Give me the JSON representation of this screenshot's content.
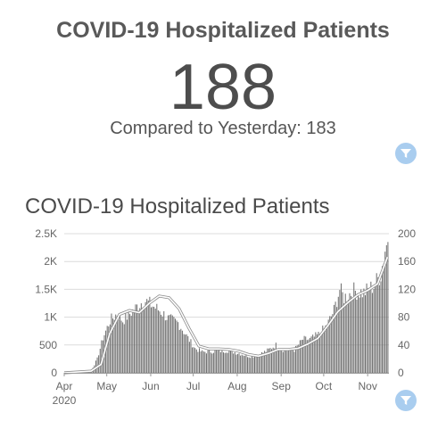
{
  "kpi": {
    "title": "COVID-19 Hospitalized Patients",
    "value": "188",
    "compare": "Compared to Yesterday: 183"
  },
  "icons": {
    "filter": "filter-funnel-icon"
  },
  "colors": {
    "bars": "#6b6b6b",
    "line": "#ffffff",
    "line_outline": "#8a8a8a",
    "filter": "#a9cdef"
  },
  "chart_data": {
    "type": "bar",
    "title": "COVID-19 Hospitalized Patients",
    "xlabel": "",
    "ylabel": "",
    "ylim": [
      0,
      2500
    ],
    "y2lim": [
      0,
      200
    ],
    "grid": true,
    "x_tick_labels": [
      "Apr",
      "May",
      "Jun",
      "Jul",
      "Aug",
      "Sep",
      "Oct",
      "Nov"
    ],
    "x_year_label": "2020",
    "y_tick_labels": [
      "0",
      "500",
      "1K",
      "1.5K",
      "2K",
      "2.5K"
    ],
    "y2_tick_labels": [
      "0",
      "40",
      "80",
      "120",
      "160",
      "200"
    ],
    "series": [
      {
        "type": "bar",
        "axis": "right",
        "start": "2020-04-01",
        "keypoints": [
          [
            "2020-04-01",
            0
          ],
          [
            "2020-04-15",
            1
          ],
          [
            "2020-04-20",
            4
          ],
          [
            "2020-04-24",
            20
          ],
          [
            "2020-04-28",
            50
          ],
          [
            "2020-05-03",
            75
          ],
          [
            "2020-05-08",
            85
          ],
          [
            "2020-05-12",
            75
          ],
          [
            "2020-05-17",
            85
          ],
          [
            "2020-05-22",
            95
          ],
          [
            "2020-05-27",
            105
          ],
          [
            "2020-06-03",
            95
          ],
          [
            "2020-06-08",
            88
          ],
          [
            "2020-06-13",
            78
          ],
          [
            "2020-06-20",
            72
          ],
          [
            "2020-06-27",
            50
          ],
          [
            "2020-07-02",
            35
          ],
          [
            "2020-07-07",
            30
          ],
          [
            "2020-07-15",
            31
          ],
          [
            "2020-07-25",
            32
          ],
          [
            "2020-08-02",
            28
          ],
          [
            "2020-08-09",
            24
          ],
          [
            "2020-08-15",
            25
          ],
          [
            "2020-08-22",
            32
          ],
          [
            "2020-08-28",
            40
          ],
          [
            "2020-09-03",
            32
          ],
          [
            "2020-09-10",
            33
          ],
          [
            "2020-09-16",
            48
          ],
          [
            "2020-09-21",
            48
          ],
          [
            "2020-09-27",
            55
          ],
          [
            "2020-10-03",
            68
          ],
          [
            "2020-10-08",
            90
          ],
          [
            "2020-10-12",
            120
          ],
          [
            "2020-10-15",
            108
          ],
          [
            "2020-10-22",
            118
          ],
          [
            "2020-10-29",
            115
          ],
          [
            "2020-11-05",
            125
          ],
          [
            "2020-11-10",
            142
          ],
          [
            "2020-11-13",
            178
          ],
          [
            "2020-11-15",
            188
          ]
        ]
      },
      {
        "type": "line",
        "axis": "left",
        "points": [
          [
            "2020-04-01",
            0
          ],
          [
            "2020-04-20",
            30
          ],
          [
            "2020-04-27",
            150
          ],
          [
            "2020-05-03",
            700
          ],
          [
            "2020-05-10",
            1050
          ],
          [
            "2020-05-17",
            1120
          ],
          [
            "2020-05-24",
            1080
          ],
          [
            "2020-05-31",
            1250
          ],
          [
            "2020-06-07",
            1380
          ],
          [
            "2020-06-14",
            1350
          ],
          [
            "2020-06-21",
            1150
          ],
          [
            "2020-06-28",
            800
          ],
          [
            "2020-07-05",
            480
          ],
          [
            "2020-07-12",
            430
          ],
          [
            "2020-07-19",
            430
          ],
          [
            "2020-07-26",
            420
          ],
          [
            "2020-08-02",
            390
          ],
          [
            "2020-08-09",
            330
          ],
          [
            "2020-08-16",
            300
          ],
          [
            "2020-08-23",
            350
          ],
          [
            "2020-08-30",
            420
          ],
          [
            "2020-09-06",
            420
          ],
          [
            "2020-09-13",
            440
          ],
          [
            "2020-09-20",
            520
          ],
          [
            "2020-09-27",
            620
          ],
          [
            "2020-10-04",
            850
          ],
          [
            "2020-10-11",
            1100
          ],
          [
            "2020-10-18",
            1260
          ],
          [
            "2020-10-25",
            1400
          ],
          [
            "2020-11-01",
            1480
          ],
          [
            "2020-11-08",
            1600
          ],
          [
            "2020-11-15",
            2080
          ]
        ]
      }
    ]
  }
}
